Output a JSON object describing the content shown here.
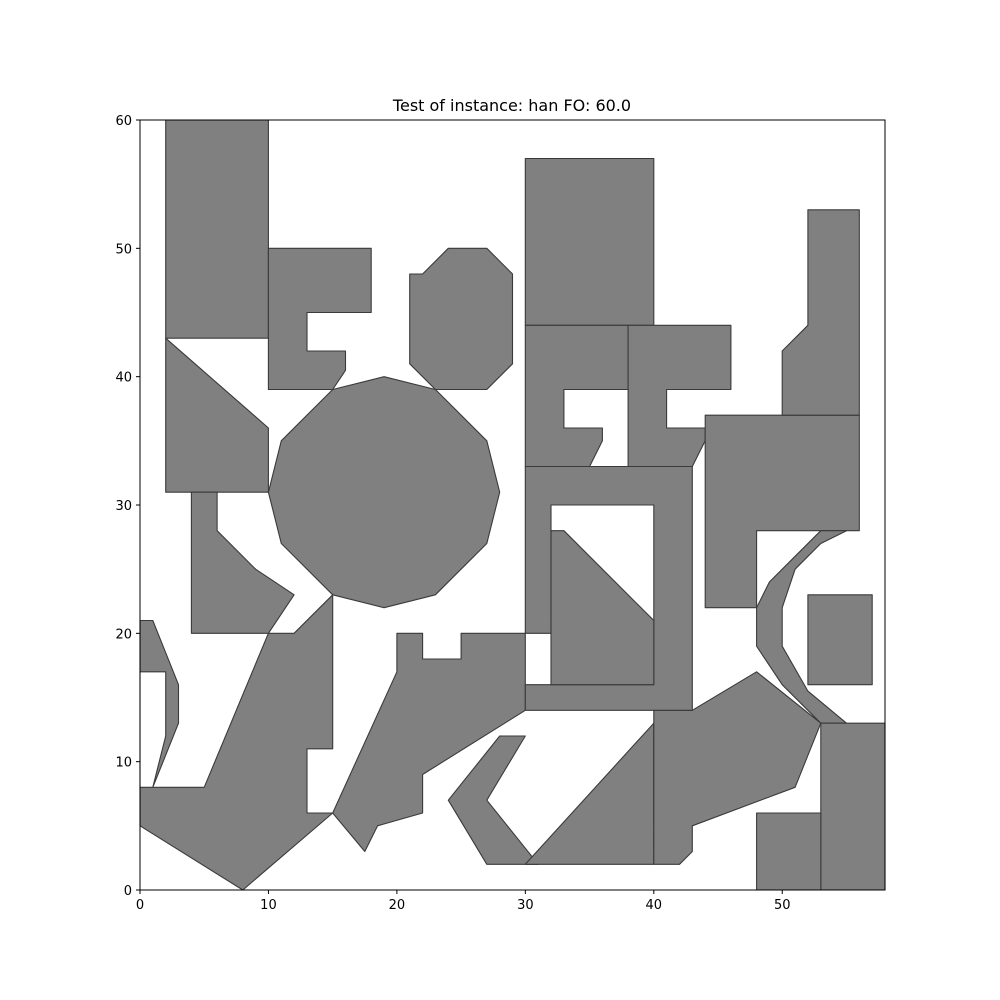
{
  "chart_data": {
    "type": "polygon",
    "title": "Test of instance: han  FO: 60.0",
    "xlabel": "",
    "ylabel": "",
    "xlim": [
      0,
      58
    ],
    "ylim": [
      0,
      60
    ],
    "xticks": [
      0,
      10,
      20,
      30,
      40,
      50
    ],
    "yticks": [
      0,
      10,
      20,
      30,
      40,
      50,
      60
    ],
    "grid": false,
    "fill_color": "#808080",
    "edge_color": "#3a3a3a",
    "polygons": [
      [
        [
          2,
          43
        ],
        [
          10,
          43
        ],
        [
          10,
          60
        ],
        [
          2,
          60
        ]
      ],
      [
        [
          10,
          39
        ],
        [
          10,
          50
        ],
        [
          18,
          50
        ],
        [
          18,
          45
        ],
        [
          13,
          45
        ],
        [
          13,
          42
        ],
        [
          16,
          42
        ],
        [
          16,
          40.5
        ],
        [
          15,
          39
        ]
      ],
      [
        [
          22,
          48
        ],
        [
          24,
          50
        ],
        [
          27,
          50
        ],
        [
          29,
          48
        ],
        [
          29,
          41
        ],
        [
          27,
          39
        ],
        [
          23,
          39
        ],
        [
          21,
          41
        ],
        [
          21,
          48
        ]
      ],
      [
        [
          2,
          31
        ],
        [
          10,
          31
        ],
        [
          10,
          36
        ],
        [
          2,
          43
        ]
      ],
      [
        [
          11,
          35
        ],
        [
          15,
          39
        ],
        [
          19,
          40
        ],
        [
          23,
          39
        ],
        [
          27,
          35
        ],
        [
          28,
          31
        ],
        [
          27,
          27
        ],
        [
          23,
          23
        ],
        [
          19,
          22
        ],
        [
          15,
          23
        ],
        [
          11,
          27
        ],
        [
          10,
          31
        ]
      ],
      [
        [
          4,
          20
        ],
        [
          4,
          31
        ],
        [
          6,
          31
        ],
        [
          6,
          28
        ],
        [
          9,
          25
        ],
        [
          12,
          23
        ],
        [
          10,
          20
        ]
      ],
      [
        [
          0,
          8
        ],
        [
          0,
          21
        ],
        [
          1,
          21
        ],
        [
          3,
          16
        ],
        [
          3,
          13
        ],
        [
          1,
          8
        ],
        [
          2,
          12
        ],
        [
          2,
          17
        ],
        [
          0,
          17
        ]
      ],
      [
        [
          0,
          5
        ],
        [
          8,
          0
        ],
        [
          15,
          6
        ],
        [
          13,
          6
        ],
        [
          13,
          11
        ],
        [
          15,
          11
        ],
        [
          15,
          23
        ],
        [
          12,
          20
        ],
        [
          10,
          20
        ],
        [
          5,
          8
        ],
        [
          0,
          8
        ]
      ],
      [
        [
          15,
          6
        ],
        [
          17.5,
          3
        ],
        [
          18.5,
          5
        ],
        [
          22,
          6
        ],
        [
          22,
          9
        ],
        [
          30,
          14
        ],
        [
          30,
          20
        ],
        [
          25,
          20
        ],
        [
          25,
          18
        ],
        [
          22,
          18
        ],
        [
          22,
          20
        ],
        [
          20,
          20
        ],
        [
          20,
          17
        ]
      ],
      [
        [
          30,
          2
        ],
        [
          31,
          2
        ],
        [
          27,
          7
        ],
        [
          30,
          12
        ],
        [
          28,
          12
        ],
        [
          24,
          7
        ],
        [
          27,
          2
        ]
      ],
      [
        [
          30,
          2
        ],
        [
          40,
          13
        ],
        [
          40,
          2
        ]
      ],
      [
        [
          40,
          14
        ],
        [
          43,
          14
        ],
        [
          48,
          17
        ],
        [
          53,
          13
        ],
        [
          51,
          8
        ],
        [
          43,
          5
        ],
        [
          43,
          3
        ],
        [
          42,
          2
        ],
        [
          40,
          2
        ]
      ],
      [
        [
          30,
          44
        ],
        [
          40,
          44
        ],
        [
          40,
          57
        ],
        [
          30,
          57
        ]
      ],
      [
        [
          30,
          33
        ],
        [
          35,
          33
        ],
        [
          36,
          35
        ],
        [
          36,
          36
        ],
        [
          33,
          36
        ],
        [
          33,
          39
        ],
        [
          38,
          39
        ],
        [
          38,
          44
        ],
        [
          30,
          44
        ]
      ],
      [
        [
          38,
          33
        ],
        [
          43,
          33
        ],
        [
          44,
          35
        ],
        [
          44,
          36
        ],
        [
          41,
          36
        ],
        [
          41,
          39
        ],
        [
          46,
          39
        ],
        [
          46,
          44
        ],
        [
          38,
          44
        ]
      ],
      [
        [
          30,
          14
        ],
        [
          43,
          14
        ],
        [
          43,
          33
        ],
        [
          30,
          33
        ],
        [
          30,
          20
        ],
        [
          32,
          20
        ],
        [
          32,
          30
        ],
        [
          40,
          30
        ],
        [
          40,
          16
        ],
        [
          32,
          16
        ],
        [
          30,
          16
        ]
      ],
      [
        [
          32,
          16
        ],
        [
          40,
          16
        ],
        [
          40,
          21
        ],
        [
          33,
          28
        ],
        [
          32,
          28
        ]
      ],
      [
        [
          44,
          22
        ],
        [
          48,
          22
        ],
        [
          48,
          28
        ],
        [
          56,
          28
        ],
        [
          56,
          37
        ],
        [
          44,
          37
        ]
      ],
      [
        [
          50,
          37
        ],
        [
          56,
          37
        ],
        [
          56,
          53
        ],
        [
          52,
          53
        ],
        [
          52,
          44
        ],
        [
          50,
          42
        ]
      ],
      [
        [
          48,
          22
        ],
        [
          48,
          19
        ],
        [
          50,
          16
        ],
        [
          53,
          13
        ],
        [
          55,
          13
        ],
        [
          52,
          15.5
        ],
        [
          50,
          19
        ],
        [
          50,
          22
        ],
        [
          51,
          25
        ],
        [
          53,
          27
        ],
        [
          55,
          28
        ],
        [
          53,
          28
        ],
        [
          51,
          26
        ],
        [
          49,
          24
        ]
      ],
      [
        [
          52,
          16
        ],
        [
          57,
          16
        ],
        [
          57,
          23
        ],
        [
          52,
          23
        ]
      ],
      [
        [
          53,
          0
        ],
        [
          58,
          0
        ],
        [
          58,
          13
        ],
        [
          53,
          13
        ]
      ],
      [
        [
          48,
          0
        ],
        [
          53,
          0
        ],
        [
          53,
          6
        ],
        [
          48,
          6
        ]
      ]
    ]
  }
}
